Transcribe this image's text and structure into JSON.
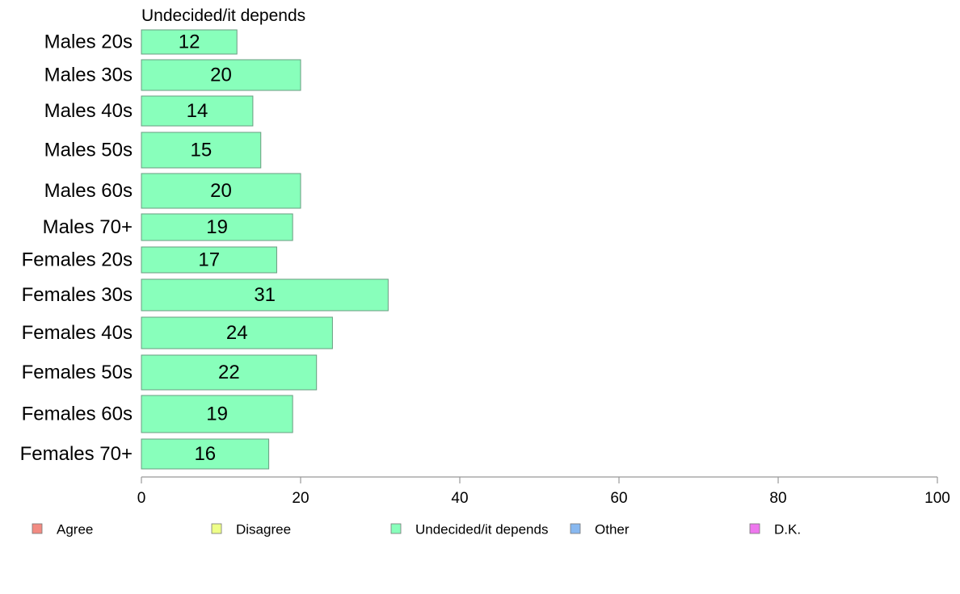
{
  "chart_data": {
    "type": "bar",
    "orientation": "horizontal",
    "title": "Undecided/it depends",
    "categories": [
      "Males 20s",
      "Males 30s",
      "Males 40s",
      "Males 50s",
      "Males 60s",
      "Males 70+",
      "Females 20s",
      "Females 30s",
      "Females 40s",
      "Females 50s",
      "Females 60s",
      "Females 70+"
    ],
    "series": [
      {
        "name": "Undecided/it depends",
        "values": [
          12,
          20,
          14,
          15,
          20,
          19,
          17,
          31,
          24,
          22,
          19,
          16
        ]
      }
    ],
    "data_labels": [
      "12",
      "20",
      "14",
      "15",
      "20",
      "19",
      "17",
      "31",
      "24",
      "22",
      "19",
      "16"
    ],
    "xlim": [
      0,
      100
    ],
    "xticks": [
      0,
      20,
      40,
      60,
      80,
      100
    ],
    "xtick_labels": [
      "0",
      "20",
      "40",
      "60",
      "80",
      "100"
    ],
    "grid": false,
    "legend_position": "bottom",
    "legend": [
      {
        "label": "Agree",
        "color": "#f28b82"
      },
      {
        "label": "Disagree",
        "color": "#eeff88"
      },
      {
        "label": "Undecided/it depends",
        "color": "#88ffbb"
      },
      {
        "label": "Other",
        "color": "#88b8f0"
      },
      {
        "label": "D.K.",
        "color": "#ee77ee"
      }
    ],
    "bar_color": "#88ffbb",
    "bar_stroke": "#6a9c80",
    "axis_color": "#999999"
  }
}
